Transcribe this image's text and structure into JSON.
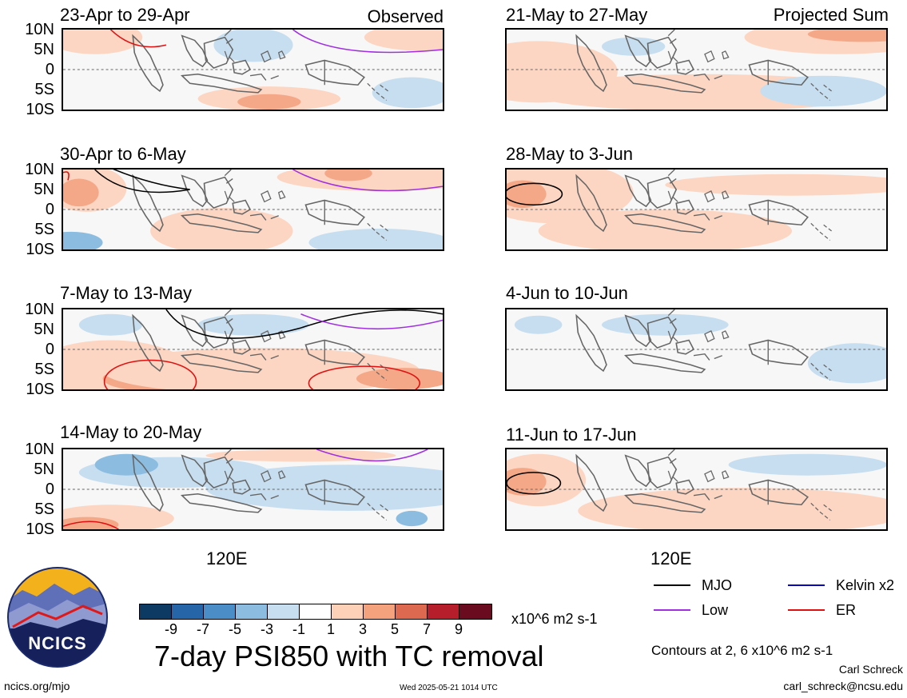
{
  "panel_tag_left": "Observed",
  "panel_tag_right": "Projected Sum",
  "lat_labels": [
    "10N",
    "5N",
    "0",
    "5S",
    "10S"
  ],
  "x_label": "120E",
  "panels_left": [
    {
      "title": "23-Apr to 29-Apr"
    },
    {
      "title": "30-Apr to 6-May"
    },
    {
      "title": "7-May to 13-May"
    },
    {
      "title": "14-May to 20-May"
    }
  ],
  "panels_right": [
    {
      "title": "21-May to 27-May"
    },
    {
      "title": "28-May to 3-Jun"
    },
    {
      "title": "4-Jun to 10-Jun"
    },
    {
      "title": "11-Jun to 17-Jun"
    }
  ],
  "legend": {
    "mjo": "MJO",
    "low": "Low",
    "kelvin": "Kelvin x2",
    "er": "ER",
    "colors": {
      "mjo": "#000000",
      "low": "#a030e0",
      "kelvin": "#0a0ab4",
      "er": "#e01010"
    }
  },
  "colorbar": {
    "ticks": [
      "-9",
      "-7",
      "-5",
      "-3",
      "-1",
      "1",
      "3",
      "5",
      "7",
      "9"
    ],
    "units": "x10^6 m2 s-1",
    "colors": [
      "#0c3a63",
      "#2666a8",
      "#4b8dc6",
      "#8cbde0",
      "#c6deef",
      "#ffffff",
      "#fcd1b8",
      "#f4a27d",
      "#dd6a50",
      "#b71e2b",
      "#6a0b1f"
    ]
  },
  "main_title": "7-day PSI850 with TC removal",
  "contours_note": "Contours at 2, 6 x10^6 m2 s-1",
  "author": "Carl Schreck",
  "email": "carl_schreck@ncsu.edu",
  "website": "ncics.org/mjo",
  "timestamp": "Wed 2025-05-21 1014 UTC",
  "logo_text": "NCICS"
}
